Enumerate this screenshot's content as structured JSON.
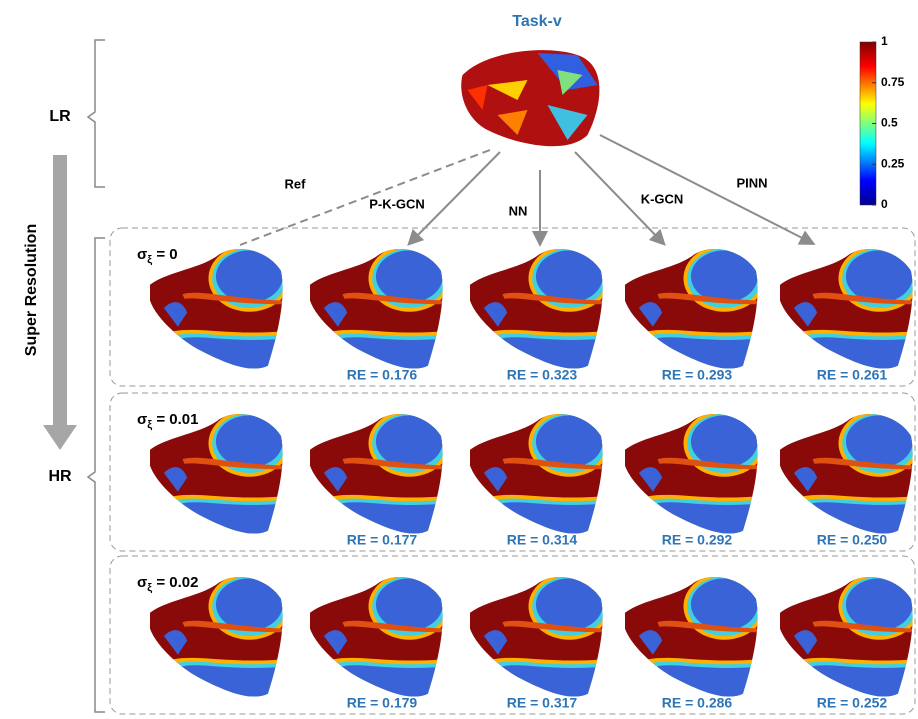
{
  "header": {
    "title": "Task-v"
  },
  "levels": {
    "low": "LR",
    "high": "HR",
    "process": "Super Resolution"
  },
  "methods": [
    "Ref",
    "P-K-GCN",
    "NN",
    "K-GCN",
    "PINN"
  ],
  "colorbar": {
    "lim": [
      0,
      1
    ],
    "ticks": [
      1,
      0.75,
      0.5,
      0.25,
      0
    ]
  },
  "rows": [
    {
      "sigma": {
        "symbol": "σ",
        "subscript": "ξ",
        "text": " = 0"
      },
      "errors": [
        "RE = 0.176",
        "RE = 0.323",
        "RE = 0.293",
        "RE = 0.261"
      ]
    },
    {
      "sigma": {
        "symbol": "σ",
        "subscript": "ξ",
        "text": " = 0.01"
      },
      "errors": [
        "RE = 0.177",
        "RE = 0.314",
        "RE = 0.292",
        "RE = 0.250"
      ]
    },
    {
      "sigma": {
        "symbol": "σ",
        "subscript": "ξ",
        "text": " = 0.02"
      },
      "errors": [
        "RE = 0.179",
        "RE = 0.317",
        "RE = 0.286",
        "RE = 0.252"
      ]
    }
  ]
}
